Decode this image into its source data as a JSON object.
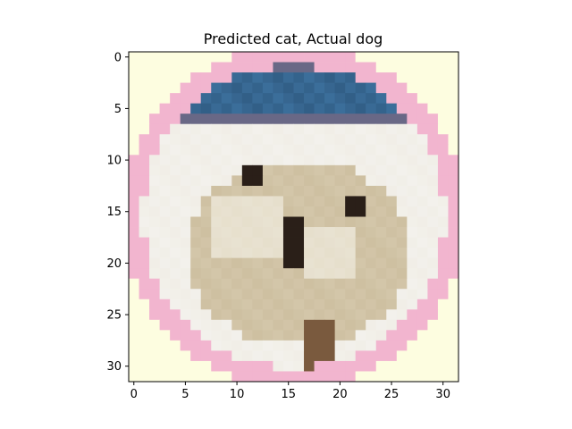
{
  "chart_data": {
    "type": "heatmap",
    "title": "Predicted cat, Actual dog",
    "xlabel": "",
    "ylabel": "",
    "image_size": [
      32,
      32
    ],
    "xlim": [
      -0.5,
      31.5
    ],
    "ylim": [
      31.5,
      -0.5
    ],
    "x_ticks": [
      0,
      5,
      10,
      15,
      20,
      25,
      30
    ],
    "y_ticks": [
      0,
      5,
      10,
      15,
      20,
      25,
      30
    ],
    "grid": false,
    "legend": "none",
    "colors": {
      "background": "#fdfde0",
      "pink_ring": "#f2b5cf",
      "white_interior": "#f3f1ec",
      "blue_band": "#3b6e9a",
      "dark_blue": "#1f3f5e",
      "fur_tan": "#c8b896",
      "fur_light": "#e6dfcc",
      "dark_eye": "#2a1f18",
      "brown": "#7a5a3e"
    }
  }
}
